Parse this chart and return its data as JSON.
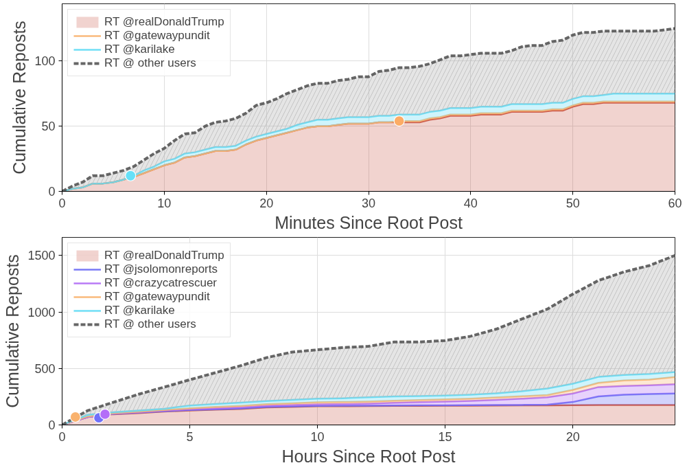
{
  "chart_data": [
    {
      "type": "area",
      "stacked": true,
      "xlabel": "Minutes Since Root Post",
      "ylabel": "Cumulative Reposts",
      "xlim": [
        0,
        60
      ],
      "xticks": [
        0,
        10,
        20,
        30,
        40,
        50,
        60
      ],
      "ylim": [
        0,
        144
      ],
      "yticks": [
        0,
        50,
        100
      ],
      "grid": true,
      "legend": "top left",
      "x": [
        0,
        1,
        2,
        3,
        4,
        5,
        6,
        7,
        8,
        9,
        10,
        11,
        12,
        13,
        14,
        15,
        16,
        17,
        18,
        19,
        20,
        21,
        22,
        23,
        24,
        25,
        26,
        27,
        28,
        29,
        30,
        31,
        32,
        33,
        34,
        35,
        36,
        37,
        38,
        39,
        40,
        41,
        42,
        43,
        44,
        45,
        46,
        47,
        48,
        49,
        50,
        51,
        52,
        53,
        54,
        55,
        56,
        57,
        58,
        59,
        60
      ],
      "series": [
        {
          "name": "RT @realDonaldTrump",
          "color": "#c8503f",
          "values": [
            0,
            2,
            3,
            6,
            6,
            7,
            9,
            11,
            14,
            17,
            20,
            22,
            26,
            27,
            29,
            31,
            31,
            32,
            36,
            39,
            41,
            43,
            45,
            47,
            49,
            50,
            50,
            51,
            52,
            52,
            52,
            53,
            53,
            53,
            53,
            53,
            55,
            56,
            58,
            58,
            58,
            59,
            59,
            59,
            61,
            61,
            61,
            61,
            62,
            62,
            65,
            67,
            67,
            68,
            68,
            68,
            68,
            68,
            68,
            68,
            68
          ]
        },
        {
          "name": "RT @gatewaypundit",
          "color": "#f9b26e",
          "values": [
            0,
            0,
            0,
            0,
            0,
            0,
            0,
            0,
            0,
            0,
            0,
            0,
            0,
            0,
            0,
            0,
            0,
            0,
            0,
            0,
            0,
            0,
            0,
            0,
            0,
            0,
            0,
            0,
            0,
            0,
            0,
            0,
            0,
            1,
            1,
            1,
            1,
            1,
            1,
            1,
            1,
            1,
            1,
            1,
            1,
            1,
            1,
            1,
            1,
            1,
            1,
            1,
            1,
            1,
            1,
            1,
            1,
            1,
            1,
            1,
            1
          ]
        },
        {
          "name": "RT @karilake",
          "color": "#5fdcf5",
          "values": [
            0,
            0,
            0,
            0,
            0,
            0,
            0,
            1,
            2,
            2,
            3,
            3,
            3,
            3,
            3,
            3,
            3,
            3,
            3,
            3,
            3,
            3,
            3,
            4,
            4,
            5,
            5,
            5,
            5,
            5,
            5,
            5,
            5,
            5,
            5,
            5,
            5,
            5,
            5,
            5,
            5,
            5,
            5,
            5,
            5,
            5,
            5,
            5,
            5,
            5,
            5,
            5,
            5,
            5,
            6,
            6,
            6,
            6,
            6,
            6,
            6
          ]
        },
        {
          "name": "RT @ other users",
          "color": "#555555",
          "line_style": "dashed",
          "values": [
            0,
            2,
            4,
            6,
            6,
            7,
            7,
            7,
            8,
            10,
            10,
            14,
            15,
            15,
            18,
            19,
            20,
            21,
            21,
            24,
            24,
            25,
            27,
            27,
            28,
            28,
            28,
            29,
            29,
            31,
            31,
            34,
            35,
            36,
            36,
            37,
            37,
            39,
            40,
            40,
            41,
            41,
            41,
            41,
            41,
            44,
            45,
            45,
            47,
            48,
            49,
            49,
            49,
            49,
            48,
            48,
            48,
            48,
            48,
            49,
            50
          ]
        },
        {
          "type": "scatter",
          "color": "#66e0f8",
          "x": [
            6.7
          ],
          "values": [
            12
          ]
        },
        {
          "type": "scatter",
          "color": "#fcac66",
          "x": [
            33
          ],
          "values": [
            54
          ]
        }
      ]
    },
    {
      "type": "area",
      "stacked": true,
      "xlabel": "Hours Since Root Post",
      "ylabel": "Cumulative Reposts",
      "xlim": [
        0,
        24
      ],
      "xticks": [
        0,
        5,
        10,
        15,
        20
      ],
      "ylim": [
        0,
        1660
      ],
      "yticks": [
        0,
        500,
        1000,
        1500
      ],
      "grid": true,
      "legend": "top left",
      "x": [
        0,
        1,
        2,
        3,
        4,
        5,
        6,
        7,
        8,
        9,
        10,
        11,
        12,
        13,
        14,
        15,
        16,
        17,
        18,
        19,
        20,
        21,
        22,
        23,
        24
      ],
      "series": [
        {
          "name": "RT @realDonaldTrump",
          "color": "#c8503f",
          "values": [
            0,
            70,
            95,
            105,
            118,
            128,
            135,
            142,
            155,
            160,
            165,
            166,
            167,
            168,
            169,
            170,
            171,
            172,
            173,
            174,
            175,
            176,
            176,
            177,
            177
          ]
        },
        {
          "name": "RT @jsolomonreports",
          "color": "#6a6af5",
          "values": [
            0,
            0,
            3,
            4,
            4,
            4,
            4,
            4,
            4,
            4,
            4,
            4,
            4,
            4,
            4,
            4,
            4,
            4,
            4,
            6,
            28,
            76,
            92,
            97,
            101
          ]
        },
        {
          "name": "RT @crazycatrescuer",
          "color": "#b06af5",
          "values": [
            0,
            0,
            3,
            4,
            5,
            6,
            8,
            10,
            11,
            13,
            14,
            15,
            17,
            24,
            29,
            33,
            38,
            46,
            55,
            65,
            75,
            83,
            77,
            77,
            83
          ]
        },
        {
          "name": "RT @gatewaypundit",
          "color": "#f9b26e",
          "values": [
            0,
            5,
            3,
            4,
            5,
            10,
            12,
            13,
            14,
            15,
            17,
            18,
            19,
            19,
            19,
            19,
            20,
            21,
            22,
            20,
            32,
            37,
            48,
            51,
            63
          ]
        },
        {
          "name": "RT @karilake",
          "color": "#5fdcf5",
          "values": [
            0,
            15,
            8,
            10,
            11,
            24,
            26,
            28,
            28,
            30,
            32,
            33,
            38,
            37,
            34,
            34,
            35,
            37,
            44,
            57,
            55,
            53,
            49,
            50,
            44
          ]
        },
        {
          "name": "RT @ other users",
          "color": "#555555",
          "line_style": "dashed",
          "values": [
            0,
            37,
            88,
            145,
            192,
            228,
            277,
            328,
            383,
            423,
            433,
            449,
            451,
            482,
            479,
            487,
            517,
            568,
            639,
            703,
            793,
            853,
            912,
            959,
            1032
          ]
        },
        {
          "type": "scatter",
          "color": "#f9b26e",
          "x": [
            0.52
          ],
          "values": [
            70
          ]
        },
        {
          "type": "scatter",
          "color": "#7070fa",
          "x": [
            1.44
          ],
          "values": [
            63
          ]
        },
        {
          "type": "scatter",
          "color": "#b46ef8",
          "x": [
            1.68
          ],
          "values": [
            95
          ]
        }
      ]
    }
  ]
}
